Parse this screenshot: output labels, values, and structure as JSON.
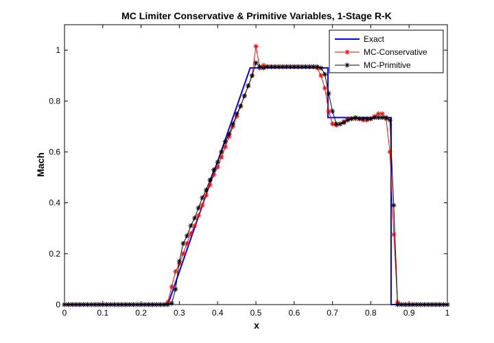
{
  "chart_data": {
    "type": "line",
    "title": "MC Limiter Conservative & Primitive Variables, 1-Stage R-K",
    "xlabel": "x",
    "ylabel": "Mach",
    "xlim": [
      0,
      1
    ],
    "ylim": [
      0,
      1.1
    ],
    "x_ticks": [
      0,
      0.1,
      0.2,
      0.3,
      0.4,
      0.5,
      0.6,
      0.7,
      0.8,
      0.9,
      1
    ],
    "x_tick_labels": [
      "0",
      "0.1",
      "0.2",
      "0.3",
      "0.4",
      "0.5",
      "0.6",
      "0.7",
      "0.8",
      "0.9",
      "1"
    ],
    "y_ticks": [
      0,
      0.2,
      0.4,
      0.6,
      0.8,
      1
    ],
    "y_tick_labels": [
      "0",
      "0.2",
      "0.4",
      "0.6",
      "0.8",
      "1"
    ],
    "grid": false,
    "legend": {
      "placement": "top-right",
      "entries": [
        "Exact",
        "MC-Conservative",
        "MC-Primitive"
      ]
    },
    "series": [
      {
        "name": "Exact",
        "color": "#0000ff",
        "marker": "none",
        "x": [
          0,
          0.27,
          0.485,
          0.688,
          0.688,
          0.853,
          0.853,
          1
        ],
        "y": [
          0,
          0,
          0.93,
          0.93,
          0.735,
          0.735,
          0,
          0
        ]
      },
      {
        "name": "MC-Conservative",
        "color": "#ff0000",
        "marker": "asterisk",
        "x": [
          0,
          0.01,
          0.02,
          0.03,
          0.04,
          0.05,
          0.06,
          0.07,
          0.08,
          0.09,
          0.1,
          0.11,
          0.12,
          0.13,
          0.14,
          0.15,
          0.16,
          0.17,
          0.18,
          0.19,
          0.2,
          0.21,
          0.22,
          0.23,
          0.24,
          0.25,
          0.26,
          0.27,
          0.28,
          0.29,
          0.3,
          0.31,
          0.32,
          0.33,
          0.34,
          0.35,
          0.36,
          0.37,
          0.38,
          0.39,
          0.4,
          0.41,
          0.42,
          0.43,
          0.44,
          0.45,
          0.46,
          0.47,
          0.48,
          0.49,
          0.5,
          0.51,
          0.52,
          0.53,
          0.54,
          0.55,
          0.56,
          0.57,
          0.58,
          0.59,
          0.6,
          0.61,
          0.62,
          0.63,
          0.64,
          0.65,
          0.66,
          0.67,
          0.68,
          0.69,
          0.7,
          0.71,
          0.72,
          0.73,
          0.74,
          0.75,
          0.76,
          0.77,
          0.78,
          0.79,
          0.8,
          0.81,
          0.82,
          0.83,
          0.84,
          0.85,
          0.86,
          0.87,
          0.88,
          0.89,
          0.9,
          0.91,
          0.92,
          0.93,
          0.94,
          0.95,
          0.96,
          0.97,
          0.98,
          0.99,
          1
        ],
        "y": [
          0,
          0,
          0,
          0,
          0,
          0,
          0,
          0,
          0,
          0,
          0,
          0,
          0,
          0,
          0,
          0,
          0,
          0,
          0,
          0,
          0,
          0,
          0,
          0,
          0,
          0,
          0,
          0.01,
          0.07,
          0.13,
          0.16,
          0.2,
          0.24,
          0.28,
          0.31,
          0.35,
          0.39,
          0.43,
          0.47,
          0.51,
          0.54,
          0.58,
          0.62,
          0.66,
          0.7,
          0.74,
          0.78,
          0.82,
          0.86,
          0.9,
          1.015,
          0.93,
          0.94,
          0.935,
          0.935,
          0.935,
          0.935,
          0.935,
          0.935,
          0.935,
          0.935,
          0.935,
          0.935,
          0.935,
          0.935,
          0.935,
          0.93,
          0.9,
          0.85,
          0.76,
          0.71,
          0.705,
          0.71,
          0.72,
          0.73,
          0.73,
          0.73,
          0.73,
          0.725,
          0.725,
          0.73,
          0.74,
          0.75,
          0.75,
          0.73,
          0.6,
          0.275,
          0.01,
          0,
          0,
          0,
          0,
          0,
          0,
          0,
          0,
          0,
          0,
          0,
          0,
          0
        ]
      },
      {
        "name": "MC-Primitive",
        "color": "#000000",
        "marker": "asterisk",
        "x": [
          0,
          0.01,
          0.02,
          0.03,
          0.04,
          0.05,
          0.06,
          0.07,
          0.08,
          0.09,
          0.1,
          0.11,
          0.12,
          0.13,
          0.14,
          0.15,
          0.16,
          0.17,
          0.18,
          0.19,
          0.2,
          0.21,
          0.22,
          0.23,
          0.24,
          0.25,
          0.26,
          0.27,
          0.28,
          0.29,
          0.3,
          0.31,
          0.32,
          0.33,
          0.34,
          0.35,
          0.36,
          0.37,
          0.38,
          0.39,
          0.4,
          0.41,
          0.42,
          0.43,
          0.44,
          0.45,
          0.46,
          0.47,
          0.48,
          0.49,
          0.5,
          0.51,
          0.52,
          0.53,
          0.54,
          0.55,
          0.56,
          0.57,
          0.58,
          0.59,
          0.6,
          0.61,
          0.62,
          0.63,
          0.64,
          0.65,
          0.66,
          0.67,
          0.68,
          0.69,
          0.7,
          0.71,
          0.72,
          0.73,
          0.74,
          0.75,
          0.76,
          0.77,
          0.78,
          0.79,
          0.8,
          0.81,
          0.82,
          0.83,
          0.84,
          0.85,
          0.86,
          0.87,
          0.88,
          0.89,
          0.9,
          0.91,
          0.92,
          0.93,
          0.94,
          0.95,
          0.96,
          0.97,
          0.98,
          0.99,
          1
        ],
        "y": [
          0,
          0,
          0,
          0,
          0,
          0,
          0,
          0,
          0,
          0,
          0,
          0,
          0,
          0,
          0,
          0,
          0,
          0,
          0,
          0,
          0,
          0,
          0,
          0,
          0,
          0,
          0,
          0,
          0.005,
          0.06,
          0.17,
          0.24,
          0.27,
          0.31,
          0.34,
          0.38,
          0.42,
          0.45,
          0.49,
          0.53,
          0.56,
          0.6,
          0.64,
          0.67,
          0.71,
          0.75,
          0.78,
          0.82,
          0.86,
          0.9,
          0.95,
          0.935,
          0.93,
          0.935,
          0.935,
          0.935,
          0.935,
          0.935,
          0.935,
          0.935,
          0.935,
          0.935,
          0.935,
          0.935,
          0.935,
          0.935,
          0.935,
          0.93,
          0.905,
          0.83,
          0.76,
          0.71,
          0.71,
          0.715,
          0.725,
          0.73,
          0.735,
          0.73,
          0.73,
          0.73,
          0.73,
          0.735,
          0.735,
          0.735,
          0.735,
          0.725,
          0.39,
          0,
          0,
          0,
          0,
          0,
          0,
          0,
          0,
          0,
          0,
          0,
          0,
          0,
          0
        ]
      }
    ]
  }
}
